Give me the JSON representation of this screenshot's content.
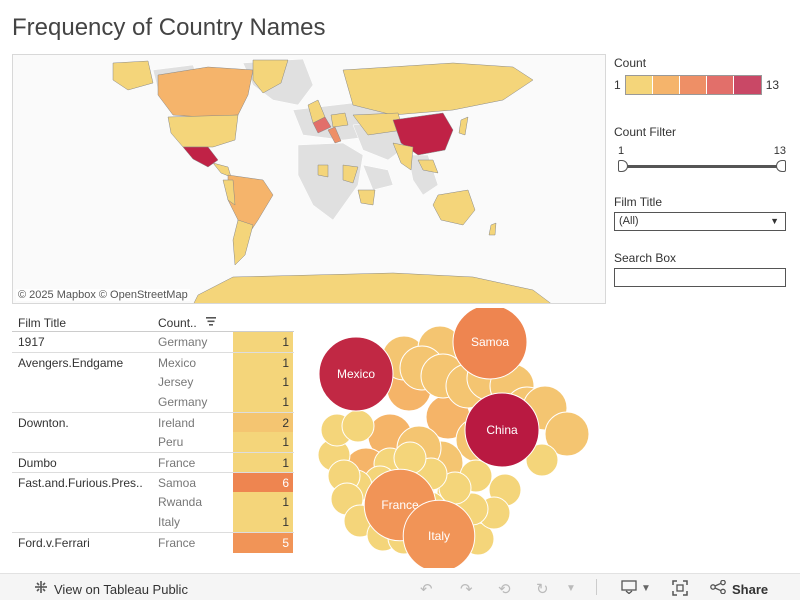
{
  "title": "Frequency of Country Names",
  "map": {
    "attribution": "© 2025 Mapbox  © OpenStreetMap"
  },
  "legend": {
    "label": "Count",
    "min": "1",
    "max": "13",
    "colors": [
      "#f4d57a",
      "#f5b46b",
      "#ee8f66",
      "#e26f6a",
      "#c94866"
    ]
  },
  "count_filter": {
    "label": "Count Filter",
    "min": "1",
    "max": "13"
  },
  "film_title_filter": {
    "label": "Film Title",
    "value": "(All)"
  },
  "search_box": {
    "label": "Search Box",
    "value": ""
  },
  "table": {
    "headers": {
      "film": "Film Title",
      "country": "Count.."
    },
    "rows": [
      {
        "film": "1917",
        "country": "Germany",
        "count": 1
      },
      {
        "film": "Avengers.Endgame",
        "country": "Mexico",
        "count": 1
      },
      {
        "film": "",
        "country": "Jersey",
        "count": 1
      },
      {
        "film": "",
        "country": "Germany",
        "count": 1
      },
      {
        "film": "Downton.",
        "country": "Ireland",
        "count": 2
      },
      {
        "film": "",
        "country": "Peru",
        "count": 1
      },
      {
        "film": "Dumbo",
        "country": "France",
        "count": 1
      },
      {
        "film": "Fast.and.Furious.Pres..",
        "country": "Samoa",
        "count": 6
      },
      {
        "film": "",
        "country": "Rwanda",
        "count": 1
      },
      {
        "film": "",
        "country": "Italy",
        "count": 1
      },
      {
        "film": "Ford.v.Ferrari",
        "country": "France",
        "count": 5
      }
    ]
  },
  "chart_data": {
    "type": "bubble",
    "color_scale": {
      "min": 1,
      "max": 13
    },
    "labeled_bubbles": [
      {
        "label": "China",
        "value": 13
      },
      {
        "label": "Mexico",
        "value": 12
      },
      {
        "label": "Samoa",
        "value": 6
      },
      {
        "label": "France",
        "value": 5
      },
      {
        "label": "Italy",
        "value": 5
      }
    ],
    "unlabeled_values": [
      3,
      3,
      3,
      3,
      2,
      2,
      2,
      2,
      2,
      2,
      2,
      2,
      2,
      2,
      2,
      2,
      2,
      1,
      1,
      1,
      1,
      1,
      1,
      1,
      1,
      1,
      1,
      1,
      1,
      1,
      1,
      1,
      1,
      1,
      1,
      1,
      1,
      1,
      1,
      1
    ]
  },
  "footer": {
    "view_label": "View on Tableau Public",
    "share_label": "Share",
    "icons": {
      "tableau": "tableau-logo-icon",
      "undo": "undo-icon",
      "redo": "redo-icon",
      "revert": "revert-icon",
      "refresh": "refresh-icon",
      "download": "download-icon",
      "fullscreen": "fullscreen-icon",
      "share": "share-icon"
    }
  }
}
